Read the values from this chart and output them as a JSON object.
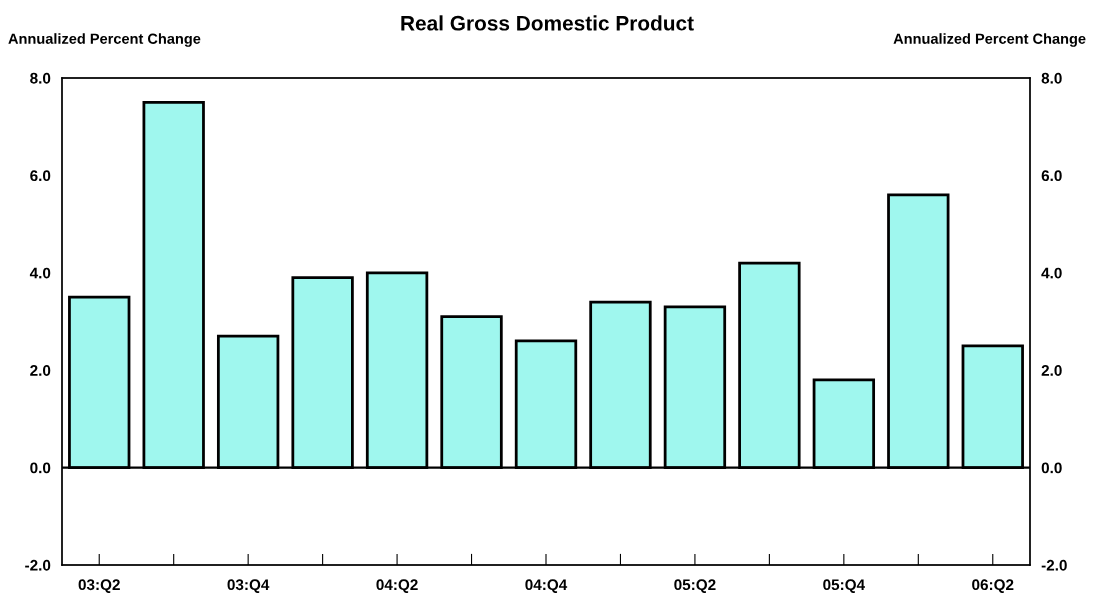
{
  "chart_data": {
    "type": "bar",
    "title": "Real Gross Domestic Product",
    "ylabel": "Annualized Percent Change",
    "y2label": "Annualized Percent Change",
    "categories": [
      "03:Q2",
      null,
      "03:Q4",
      null,
      "04:Q2",
      null,
      "04:Q4",
      null,
      "05:Q2",
      null,
      "05:Q4",
      null,
      "06:Q2"
    ],
    "values": [
      3.5,
      7.5,
      2.7,
      3.9,
      4.0,
      3.1,
      2.6,
      3.4,
      3.3,
      4.2,
      1.8,
      5.6,
      2.5
    ],
    "color": "#9ff7ee",
    "ylim": [
      -2,
      8
    ],
    "yticks": [
      {
        "value": -2,
        "label": "-2.0"
      },
      {
        "value": 0,
        "label": "0.0"
      },
      {
        "value": 2,
        "label": "2.0"
      },
      {
        "value": 4,
        "label": "4.0"
      },
      {
        "value": 6,
        "label": "6.0"
      },
      {
        "value": 8,
        "label": "8.0"
      }
    ],
    "y2lim": [
      -2,
      8
    ],
    "y2ticks": [
      {
        "value": -2,
        "label": "-2.0"
      },
      {
        "value": 0,
        "label": "0.0"
      },
      {
        "value": 2,
        "label": "2.0"
      },
      {
        "value": 4,
        "label": "4.0"
      },
      {
        "value": 6,
        "label": "6.0"
      },
      {
        "value": 8,
        "label": "8.0"
      }
    ],
    "ref_lines": [
      {
        "axis": "y",
        "value": 0,
        "color": "#000000"
      }
    ],
    "grid": false,
    "legend": false
  }
}
